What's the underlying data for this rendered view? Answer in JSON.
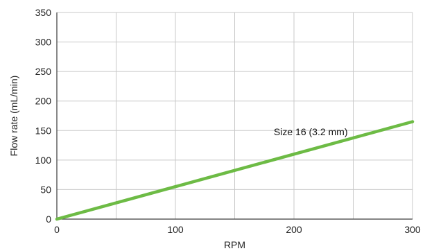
{
  "chart_data": {
    "type": "line",
    "title": "",
    "xlabel": "RPM",
    "ylabel": "Flow rate (mL/min)",
    "xlim": [
      0,
      300
    ],
    "ylim": [
      0,
      350
    ],
    "x_ticks": [
      0,
      100,
      200,
      300
    ],
    "x_gridlines": [
      0,
      50,
      100,
      150,
      200,
      250,
      300
    ],
    "y_ticks": [
      0,
      50,
      100,
      150,
      200,
      250,
      300,
      350
    ],
    "grid": true,
    "legend": "none",
    "series": [
      {
        "name": "Size 16 (3.2 mm)",
        "color": "#6dbb45",
        "x": [
          0,
          300
        ],
        "y": [
          0,
          165
        ]
      }
    ],
    "annotations": [
      {
        "text": "Size 16 (3.2 mm)",
        "x": 183,
        "y": 148
      }
    ]
  }
}
